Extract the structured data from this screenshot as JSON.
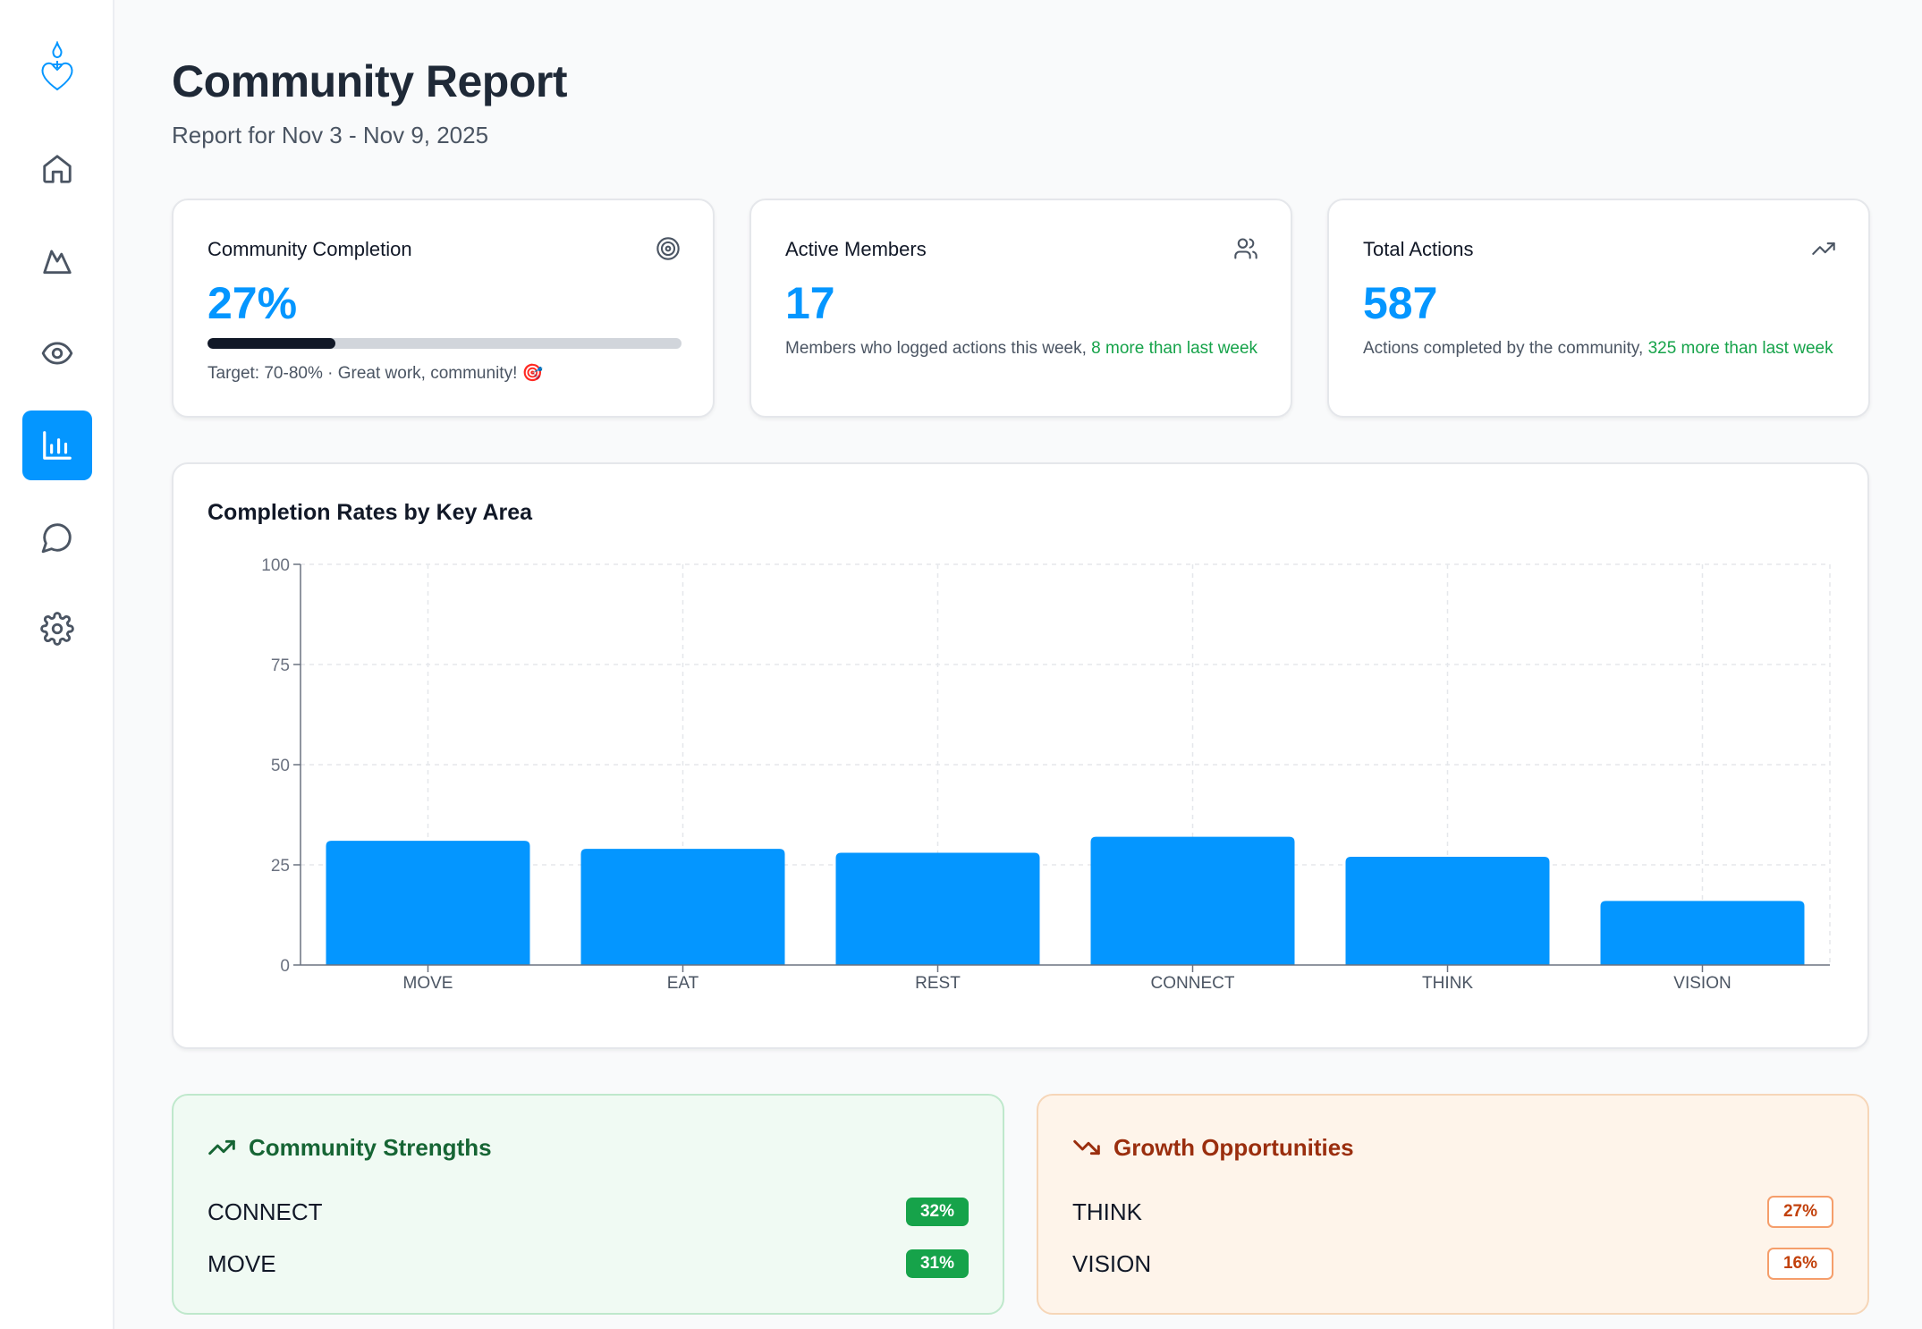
{
  "sidebar": {
    "logo": "sacred-heart-logo",
    "items": [
      {
        "icon": "home-icon",
        "active": false
      },
      {
        "icon": "mountain-icon",
        "active": false
      },
      {
        "icon": "eye-icon",
        "active": false
      },
      {
        "icon": "bar-chart-icon",
        "active": true
      },
      {
        "icon": "chat-icon",
        "active": false
      },
      {
        "icon": "settings-icon",
        "active": false
      }
    ]
  },
  "header": {
    "title": "Community Report",
    "subtitle": "Report for Nov 3 - Nov 9, 2025"
  },
  "stats": {
    "completion": {
      "label": "Community Completion",
      "value": "27%",
      "progress": 0.27,
      "target_text": "Target: 70-80% · Great work, community! 🎯",
      "icon": "target-icon"
    },
    "members": {
      "label": "Active Members",
      "value": "17",
      "desc": "Members who logged actions this week, ",
      "delta": "8 more than last week",
      "icon": "users-icon"
    },
    "actions": {
      "label": "Total Actions",
      "value": "587",
      "desc": "Actions completed by the community, ",
      "delta": "325 more than last week",
      "icon": "trending-up-icon"
    }
  },
  "chart_data": {
    "type": "bar",
    "title": "Completion Rates by Key Area",
    "categories": [
      "MOVE",
      "EAT",
      "REST",
      "CONNECT",
      "THINK",
      "VISION"
    ],
    "values": [
      31,
      29,
      28,
      32,
      27,
      16
    ],
    "ylim": [
      0,
      100
    ],
    "yticks": [
      0,
      25,
      50,
      75,
      100
    ],
    "grid": true,
    "color": "#0496ff"
  },
  "strengths": {
    "title": "Community Strengths",
    "items": [
      {
        "name": "CONNECT",
        "value": "32%"
      },
      {
        "name": "MOVE",
        "value": "31%"
      }
    ]
  },
  "growth": {
    "title": "Growth Opportunities",
    "items": [
      {
        "name": "THINK",
        "value": "27%"
      },
      {
        "name": "VISION",
        "value": "16%"
      }
    ]
  },
  "colors": {
    "accent": "#0496ff",
    "positive": "#16a34a",
    "warning": "#c2410c"
  }
}
